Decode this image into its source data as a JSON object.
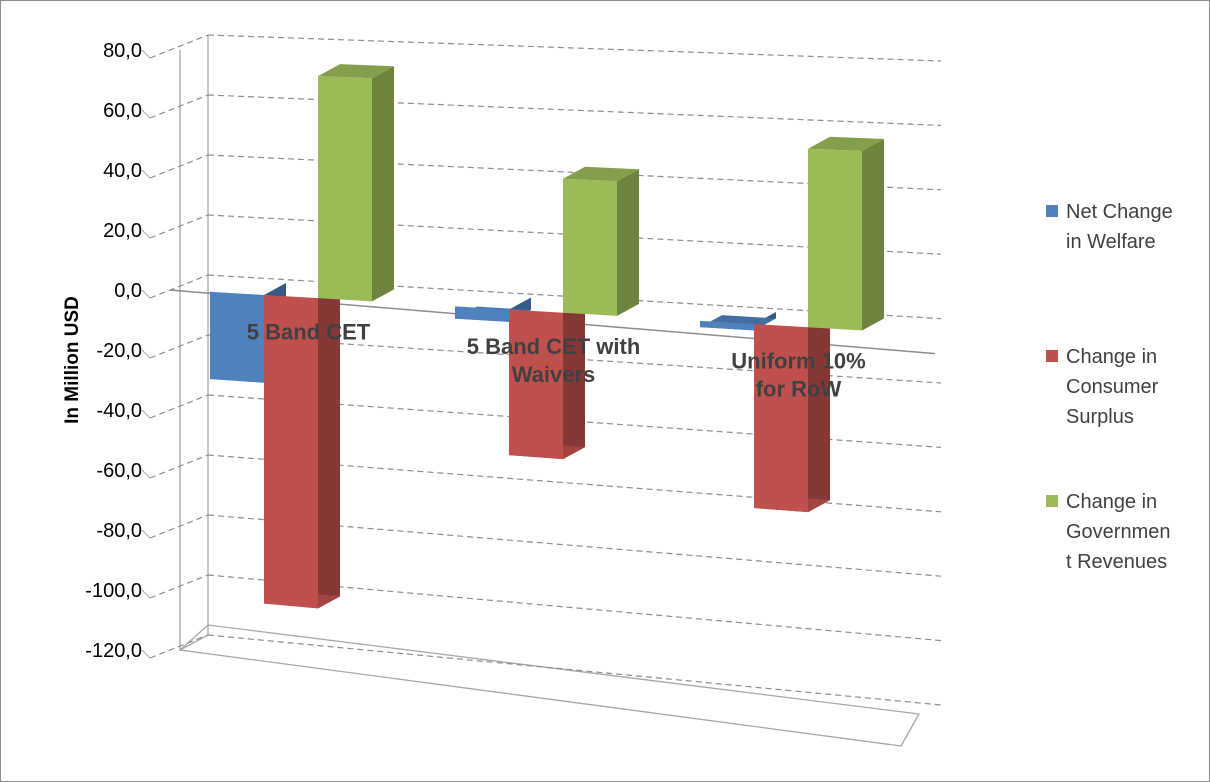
{
  "chart_data": {
    "type": "bar",
    "style": "3d-clustered-column",
    "categories": [
      "5 Band CET",
      "5 Band CET with Waivers",
      "Uniform 10% for RoW"
    ],
    "category_label_lines": [
      [
        "5 Band CET"
      ],
      [
        "5 Band CET with",
        "Waivers"
      ],
      [
        "Uniform 10%",
        "for RoW"
      ]
    ],
    "series": [
      {
        "name": "Net Change in Welfare",
        "legend_lines": [
          "Net Change",
          "in Welfare"
        ],
        "color": "#4f81bd",
        "values": [
          -29,
          -4,
          -2
        ]
      },
      {
        "name": "Change in Consumer Surplus",
        "legend_lines": [
          "Change in",
          "Consumer",
          "Surplus"
        ],
        "color": "#c0504d",
        "values": [
          -102,
          -47,
          -58
        ]
      },
      {
        "name": "Change in Government Revenues",
        "legend_lines": [
          "Change in",
          "Governmen",
          "t Revenues"
        ],
        "color": "#9bbb59",
        "values": [
          73,
          43,
          56
        ]
      }
    ],
    "ylabel": "In Million USD",
    "yticks": [
      "80,0",
      "60,0",
      "40,0",
      "20,0",
      "0,0",
      "-20,0",
      "-40,0",
      "-60,0",
      "-80,0",
      "-100,0",
      "-120,0"
    ],
    "ylim": [
      -120,
      80
    ],
    "grid": true,
    "legend": "right"
  }
}
